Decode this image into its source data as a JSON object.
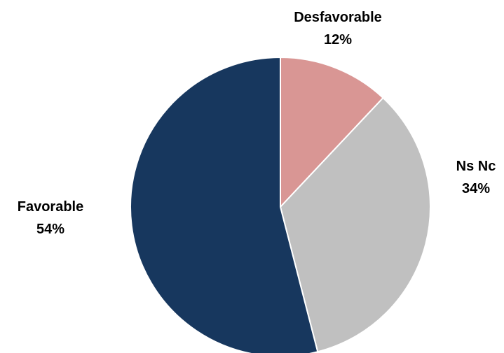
{
  "chart_data": {
    "type": "pie",
    "title": "",
    "slices": [
      {
        "label": "Desfavorable",
        "value": 12,
        "value_label": "12%",
        "color": "#d99694"
      },
      {
        "label": "Ns Nc",
        "value": 34,
        "value_label": "34%",
        "color": "#c0c0c0"
      },
      {
        "label": "Favorable",
        "value": 54,
        "value_label": "54%",
        "color": "#17375e"
      }
    ],
    "start": "12 o'clock",
    "direction": "clockwise",
    "legend": "none",
    "slice_border_color": "#ffffff"
  }
}
